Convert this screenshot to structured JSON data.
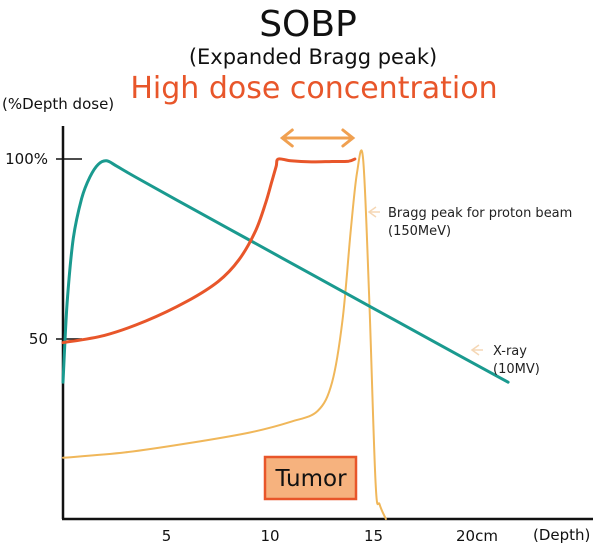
{
  "title": "SOBP",
  "subtitle": "(Expanded Bragg peak)",
  "headline": "High dose concentration",
  "colors": {
    "xray": "#1a9a8f",
    "sobp": "#e8562a",
    "bragg": "#f0b75a",
    "arrow": "#f0a050",
    "axis": "#111111",
    "tumor_fill": "#f6b27e",
    "tumor_border": "#e8562a"
  },
  "chart_data": {
    "type": "line",
    "xlabel": "(Depth)",
    "ylabel": "(%Depth dose)",
    "xlim": [
      0,
      26
    ],
    "ylim": [
      0,
      110
    ],
    "x_ticks": [
      {
        "value": 5,
        "label": "5"
      },
      {
        "value": 10,
        "label": "10"
      },
      {
        "value": 15,
        "label": "15"
      },
      {
        "value": 20,
        "label": "20cm"
      }
    ],
    "y_ticks": [
      {
        "value": 100,
        "label": "100%"
      },
      {
        "value": 50,
        "label": "50"
      }
    ],
    "series": [
      {
        "name": "X-ray",
        "sublabel": "(10MV)",
        "color": "#1a9a8f",
        "x": [
          0,
          0.2,
          0.5,
          0.9,
          1.3,
          1.7,
          2.1,
          2.6,
          3.5,
          6,
          9,
          12,
          15,
          18,
          21.5
        ],
        "y": [
          38,
          60,
          78,
          89,
          95,
          98.5,
          99.5,
          98,
          95,
          87,
          77.5,
          68,
          58.5,
          49,
          38
        ]
      },
      {
        "name": "Bragg peak for proton beam",
        "sublabel": "(150MeV)",
        "color": "#f0b75a",
        "x": [
          0,
          3,
          6,
          9,
          11,
          12.3,
          13,
          13.5,
          13.9,
          14.2,
          14.5,
          14.8,
          15.1,
          15.3,
          15.6
        ],
        "y": [
          17,
          18.5,
          21,
          24,
          27,
          30,
          38,
          55,
          80,
          96,
          100,
          60,
          10,
          4,
          0
        ]
      },
      {
        "name": "SOBP",
        "color": "#e8562a",
        "x": [
          0,
          2,
          4,
          6,
          7.5,
          8.5,
          9.3,
          9.8,
          10.1,
          10.3,
          10.4,
          11,
          12,
          13,
          13.8,
          14.1
        ],
        "y": [
          49,
          51,
          55,
          60.5,
          66,
          72,
          80,
          88,
          94,
          98,
          100,
          99.5,
          99.2,
          99.3,
          99.4,
          100
        ]
      }
    ],
    "annotations": {
      "bragg_label": "Bragg peak for proton beam",
      "bragg_sublabel": "(150MeV)",
      "xray_label": "X-ray",
      "xray_sublabel": "(10MV)",
      "tumor_label": "Tumor",
      "range_arrow": [
        10.4,
        14.1
      ]
    }
  }
}
